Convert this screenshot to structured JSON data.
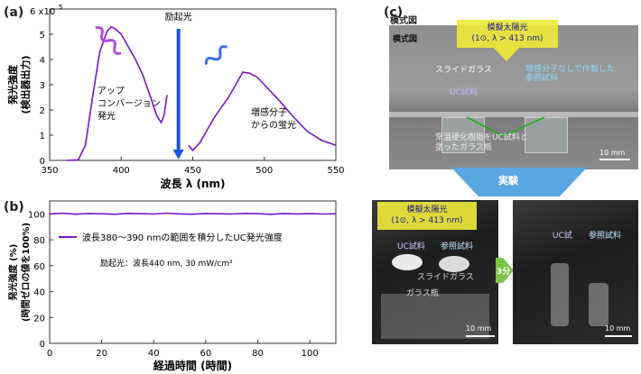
{
  "panel_labels": {
    "a": "(a)",
    "b": "(b)",
    "c": "(c)"
  },
  "chart_data": [
    {
      "type": "line",
      "panel": "a",
      "xlabel": "波長 λ (nm)",
      "ylabel_lines": [
        "発光強度",
        "(検出器出力)"
      ],
      "xlim": [
        350,
        550
      ],
      "ylim": [
        0,
        600000
      ],
      "xticks": [
        350,
        400,
        450,
        500,
        550
      ],
      "yticks": [
        0,
        100000,
        200000,
        300000,
        400000,
        500000
      ],
      "ytick_labels": [
        "0",
        "1",
        "2",
        "3",
        "4",
        "5"
      ],
      "top_label": "6 x10",
      "top_exp": "5",
      "series": [
        {
          "name": "アップコンバージョン発光",
          "x": [
            362,
            370,
            375,
            380,
            385,
            390,
            393,
            396,
            400,
            405,
            410,
            415,
            420,
            425,
            428,
            430,
            432
          ],
          "y": [
            0,
            2000,
            60000,
            250000,
            430000,
            510000,
            530000,
            520000,
            500000,
            450000,
            400000,
            340000,
            260000,
            175000,
            150000,
            180000,
            260000
          ]
        },
        {
          "name": "増感分子からの蛍光",
          "x": [
            447,
            450,
            455,
            460,
            465,
            470,
            475,
            480,
            485,
            490,
            495,
            500,
            505,
            510,
            520,
            530,
            540,
            550
          ],
          "y": [
            60000,
            40000,
            70000,
            120000,
            170000,
            210000,
            250000,
            300000,
            350000,
            345000,
            330000,
            300000,
            270000,
            240000,
            175000,
            115000,
            80000,
            60000
          ]
        }
      ],
      "annotations": {
        "upconversion": [
          "アップ",
          "コンバージョン",
          "発光"
        ],
        "fluorescence": [
          "増感分子",
          "からの蛍光"
        ],
        "excitation": "励起光"
      },
      "excitation_nm": 440
    },
    {
      "type": "line",
      "panel": "b",
      "xlabel": "経過時間 (時間)",
      "ylabel_lines": [
        "発光強度 (%)",
        "(時間ゼロの値を100%)"
      ],
      "xlim": [
        0,
        110
      ],
      "ylim": [
        0,
        110
      ],
      "xticks": [
        0,
        20,
        40,
        60,
        80,
        100
      ],
      "yticks": [
        0,
        20,
        40,
        60,
        80,
        100
      ],
      "series": [
        {
          "name": "波長380〜390 nmの範囲を積分したUC発光強度",
          "x": [
            0,
            5,
            10,
            15,
            20,
            25,
            30,
            35,
            40,
            45,
            50,
            55,
            60,
            65,
            70,
            75,
            80,
            85,
            90,
            95,
            100,
            105,
            110
          ],
          "y": [
            100,
            100.5,
            99.8,
            100.3,
            100.1,
            99.7,
            100.4,
            100.2,
            99.9,
            100.6,
            100.0,
            99.8,
            100.3,
            100.1,
            99.9,
            100.4,
            100.2,
            99.7,
            100.3,
            100.0,
            100.2,
            99.9,
            100.1
          ]
        }
      ],
      "condition_text": "励起光：波長440 nm, 30 mW/cm²"
    }
  ],
  "panel_c": {
    "schematic_title": "模式図",
    "sun_line1": "模擬太陽光",
    "sun_line2": "(1⊙, λ > 413 nm)",
    "slide_glass": "スライドガラス",
    "uc_sample": "UC試料",
    "reference": [
      "増感分子なしで作製した",
      "参照試料"
    ],
    "bottom_text": [
      "常温硬化樹脂をUC試料と",
      "塗ったガラス瓶"
    ],
    "scale": "10 mm",
    "experiment": "実験",
    "photo_uc": "UC試料",
    "photo_ref": "参照試料",
    "photo_slide": "スライドガラス",
    "photo_bottle": "ガラス瓶",
    "arrow_time": "3分",
    "photo2_uc": "UC試",
    "photo2_ref": "参照試料"
  },
  "colors": {
    "series": "#7a16c9",
    "excitation": "#1e50e0",
    "sun": "#e8e23c",
    "experiment_arrow": "#5aa6e0",
    "time_arrow": "#7cc24a"
  }
}
